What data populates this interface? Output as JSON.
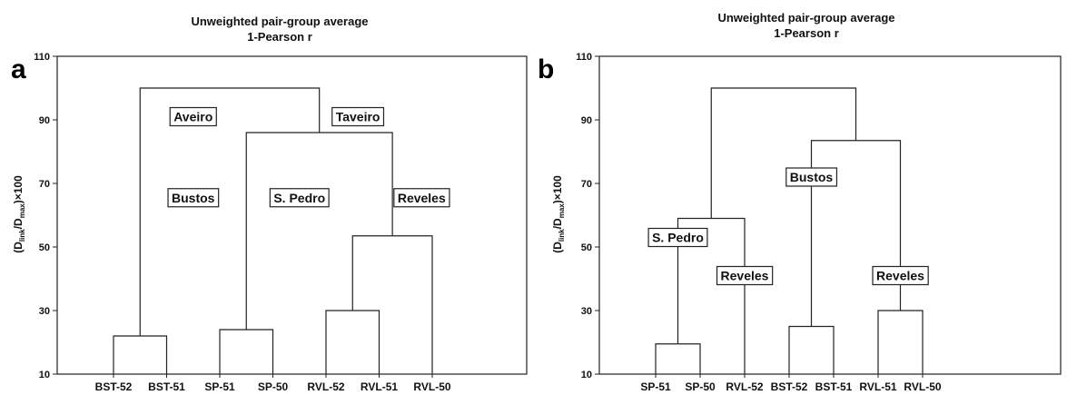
{
  "chart_data": [
    {
      "type": "dendrogram",
      "panel": "a",
      "title": "Unweighted pair-group average",
      "subtitle": "1-Pearson r",
      "ylabel": "(D_link/D_max)×100",
      "ylim": [
        10,
        110
      ],
      "yticks": [
        "110",
        "90",
        "70",
        "50",
        "30",
        "10"
      ],
      "leaves": [
        "BST-52",
        "BST-51",
        "SP-51",
        "SP-50",
        "RVL-52",
        "RVL-51",
        "RVL-50"
      ],
      "merges": [
        {
          "left": [
            "BST-52"
          ],
          "right": [
            "BST-51"
          ],
          "height": 22
        },
        {
          "left": [
            "SP-51"
          ],
          "right": [
            "SP-50"
          ],
          "height": 24
        },
        {
          "left": [
            "RVL-52"
          ],
          "right": [
            "RVL-51"
          ],
          "height": 30
        },
        {
          "left": [
            "RVL-52",
            "RVL-51"
          ],
          "right": [
            "RVL-50"
          ],
          "height": 53.5
        },
        {
          "left": [
            "SP-51",
            "SP-50"
          ],
          "right": [
            "RVL-52",
            "RVL-51",
            "RVL-50"
          ],
          "height": 86
        },
        {
          "left": [
            "BST-52",
            "BST-51"
          ],
          "right": [
            "SP-51",
            "SP-50",
            "RVL-52",
            "RVL-51",
            "RVL-50"
          ],
          "height": 100
        }
      ],
      "annotations": [
        {
          "text": "Aveiro",
          "x_leaf": 1.5,
          "y": 91
        },
        {
          "text": "Taveiro",
          "x_leaf": 4.6,
          "y": 91
        },
        {
          "text": "Bustos",
          "x_leaf": 1.5,
          "y": 65.5
        },
        {
          "text": "S. Pedro",
          "x_leaf": 3.5,
          "y": 65.5
        },
        {
          "text": "Reveles",
          "x_leaf": 5.8,
          "y": 65.5
        }
      ]
    },
    {
      "type": "dendrogram",
      "panel": "b",
      "title": "Unweighted pair-group average",
      "subtitle": "1-Pearson r",
      "ylabel": "(D_link/D_max)×100",
      "ylim": [
        10,
        110
      ],
      "yticks": [
        "110",
        "90",
        "70",
        "50",
        "30",
        "10"
      ],
      "leaves": [
        "SP-51",
        "SP-50",
        "RVL-52",
        "BST-52",
        "BST-51",
        "RVL-51",
        "RVL-50"
      ],
      "merges": [
        {
          "left": [
            "SP-51"
          ],
          "right": [
            "SP-50"
          ],
          "height": 19.5
        },
        {
          "left": [
            "SP-51",
            "SP-50"
          ],
          "right": [
            "RVL-52"
          ],
          "height": 59
        },
        {
          "left": [
            "BST-52"
          ],
          "right": [
            "BST-51"
          ],
          "height": 25
        },
        {
          "left": [
            "RVL-51"
          ],
          "right": [
            "RVL-50"
          ],
          "height": 30
        },
        {
          "left": [
            "BST-52",
            "BST-51"
          ],
          "right": [
            "RVL-51",
            "RVL-50"
          ],
          "height": 83.5
        },
        {
          "left": [
            "SP-51",
            "SP-50",
            "RVL-52"
          ],
          "right": [
            "BST-52",
            "BST-51",
            "RVL-51",
            "RVL-50"
          ],
          "height": 100
        }
      ],
      "annotations": [
        {
          "text": "S. Pedro",
          "x_leaf": 0.5,
          "y": 53
        },
        {
          "text": "Reveles",
          "x_leaf": 2.0,
          "y": 41
        },
        {
          "text": "Bustos",
          "x_leaf": 3.5,
          "y": 72
        },
        {
          "text": "Reveles",
          "x_leaf": 5.5,
          "y": 41
        }
      ]
    }
  ]
}
